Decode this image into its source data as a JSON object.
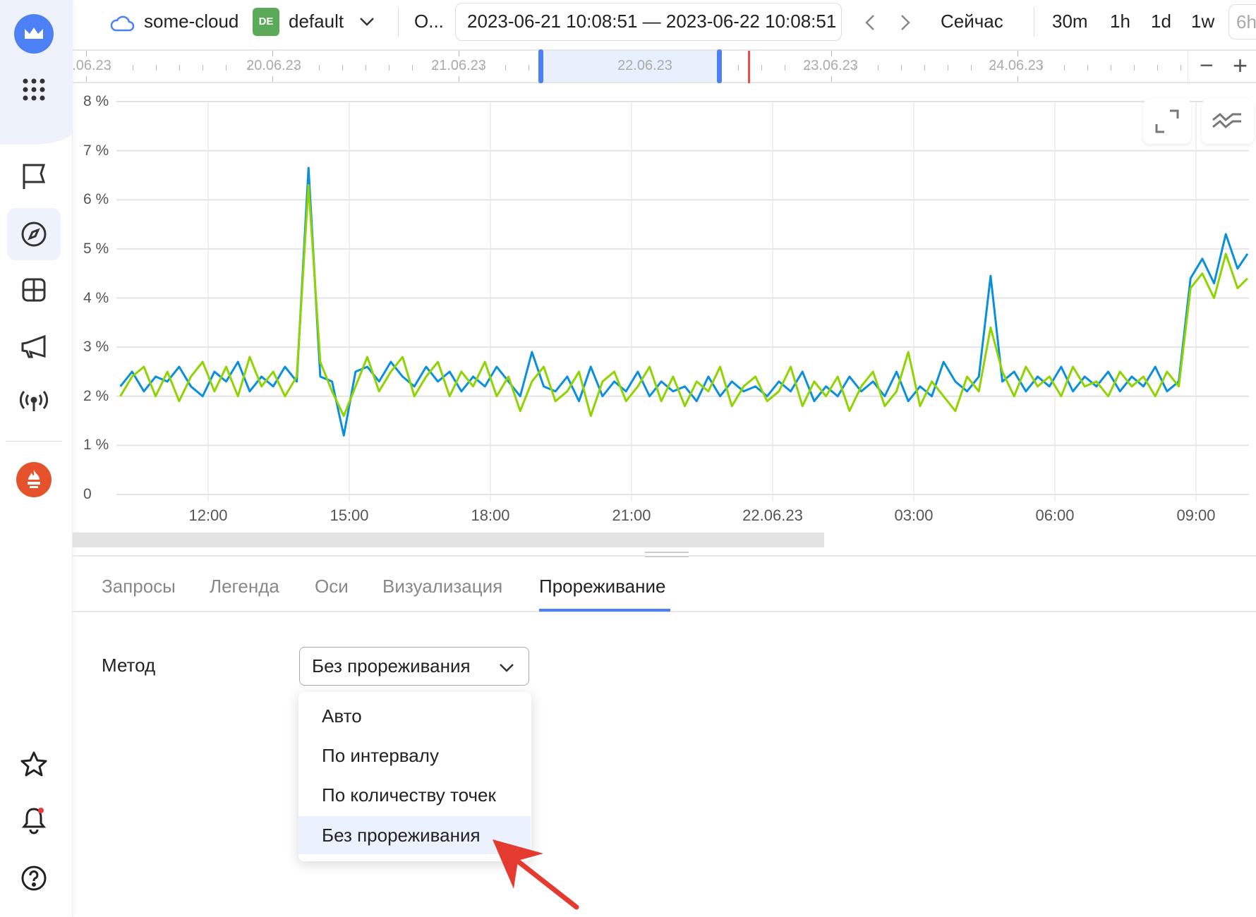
{
  "topbar": {
    "cloud": "some-cloud",
    "folder_badge": "DE",
    "folder": "default",
    "overflow": "О...",
    "time_range": "2023-06-21 10:08:51 — 2023-06-22 10:08:51",
    "now": "Сейчас",
    "presets": [
      "30m",
      "1h",
      "1d",
      "1w",
      "6h"
    ]
  },
  "timeline": {
    "labels": [
      ".06.23",
      "20.06.23",
      "21.06.23",
      "22.06.23",
      "23.06.23",
      "24.06.23"
    ],
    "zoom_out": "−",
    "zoom_in": "+"
  },
  "colors": {
    "accent": "#4d80f5",
    "series_blue": "#0a8fdc",
    "series_green": "#8fd400",
    "now_marker": "#ef4b4b",
    "arrow": "#e53a2f"
  },
  "chart_data": {
    "type": "line",
    "y_ticks": [
      "0",
      "1 %",
      "2 %",
      "3 %",
      "4 %",
      "5 %",
      "6 %",
      "7 %",
      "8 %"
    ],
    "ylim": [
      0,
      8
    ],
    "x_ticks": [
      "12:00",
      "15:00",
      "18:00",
      "21:00",
      "22.06.23",
      "03:00",
      "06:00",
      "09:00"
    ],
    "x_start": "2023-06-21 10:08",
    "x_end": "2023-06-22 10:08",
    "interval_minutes": 15,
    "grid": true,
    "series": [
      {
        "color": "#0a8fdc",
        "values": [
          2.2,
          2.5,
          2.1,
          2.4,
          2.3,
          2.6,
          2.2,
          2.0,
          2.5,
          2.3,
          2.7,
          2.1,
          2.4,
          2.2,
          2.6,
          2.3,
          6.65,
          2.4,
          2.3,
          1.2,
          2.5,
          2.6,
          2.3,
          2.7,
          2.4,
          2.2,
          2.6,
          2.3,
          2.5,
          2.1,
          2.4,
          2.2,
          2.6,
          2.3,
          2.0,
          2.9,
          2.2,
          2.1,
          2.4,
          1.9,
          2.6,
          2.0,
          2.3,
          2.1,
          2.5,
          2.0,
          2.3,
          2.1,
          2.2,
          1.9,
          2.4,
          2.0,
          2.3,
          2.1,
          2.2,
          2.0,
          2.3,
          2.1,
          2.5,
          1.9,
          2.2,
          2.0,
          2.4,
          2.1,
          2.3,
          2.0,
          2.5,
          1.9,
          2.2,
          2.0,
          2.7,
          2.3,
          2.1,
          2.4,
          4.45,
          2.3,
          2.5,
          2.1,
          2.4,
          2.2,
          2.6,
          2.1,
          2.4,
          2.2,
          2.5,
          2.1,
          2.4,
          2.2,
          2.6,
          2.1,
          2.3,
          4.4,
          4.8,
          4.3,
          5.3,
          4.6,
          4.9
        ]
      },
      {
        "color": "#8fd400",
        "values": [
          2.0,
          2.4,
          2.6,
          2.0,
          2.5,
          1.9,
          2.4,
          2.7,
          2.1,
          2.6,
          2.0,
          2.8,
          2.2,
          2.5,
          2.0,
          2.4,
          6.3,
          2.7,
          2.1,
          1.6,
          2.2,
          2.8,
          2.1,
          2.5,
          2.8,
          2.0,
          2.4,
          2.7,
          2.0,
          2.5,
          2.2,
          2.7,
          2.0,
          2.4,
          1.7,
          2.3,
          2.6,
          1.9,
          2.1,
          2.5,
          1.6,
          2.3,
          2.5,
          1.9,
          2.2,
          2.6,
          1.9,
          2.4,
          1.8,
          2.3,
          2.1,
          2.6,
          1.8,
          2.2,
          2.4,
          1.9,
          2.1,
          2.6,
          1.8,
          2.3,
          2.0,
          2.4,
          1.7,
          2.2,
          2.5,
          1.8,
          2.1,
          2.9,
          1.8,
          2.3,
          2.0,
          1.7,
          2.4,
          2.1,
          3.4,
          2.5,
          2.0,
          2.6,
          2.2,
          2.4,
          2.0,
          2.6,
          2.2,
          2.3,
          2.0,
          2.5,
          2.2,
          2.4,
          2.0,
          2.5,
          2.2,
          4.2,
          4.5,
          4.0,
          4.9,
          4.2,
          4.4
        ]
      }
    ]
  },
  "tabs": [
    {
      "label": "Запросы"
    },
    {
      "label": "Легенда"
    },
    {
      "label": "Оси"
    },
    {
      "label": "Визуализация"
    },
    {
      "label": "Прореживание",
      "active": true
    }
  ],
  "form": {
    "method_label": "Метод",
    "method_value": "Без прореживания",
    "options": [
      "Авто",
      "По интервалу",
      "По количеству точек",
      "Без прореживания"
    ],
    "highlighted": "Без прореживания"
  }
}
